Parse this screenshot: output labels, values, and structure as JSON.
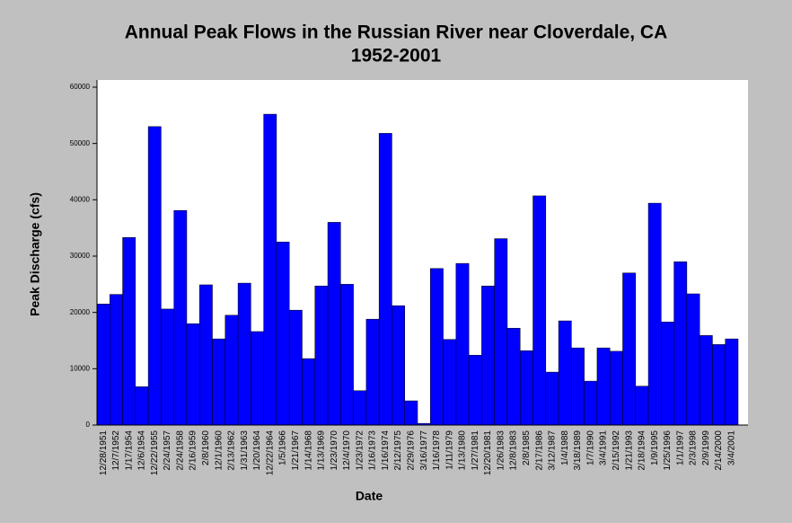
{
  "chart_data": {
    "type": "bar",
    "title": "Annual Peak Flows in the Russian River near Cloverdale, CA",
    "subtitle": "1952-2001",
    "x_label": "Date",
    "y_label": "Peak Discharge (cfs)",
    "categories": [
      "12/28/1951",
      "12/7/1952",
      "1/17/1954",
      "12/6/1954",
      "12/22/1955",
      "2/24/1957",
      "2/24/1958",
      "2/16/1959",
      "2/8/1960",
      "12/1/1960",
      "2/13/1962",
      "1/31/1963",
      "1/20/1964",
      "12/22/1964",
      "1/5/1966",
      "1/21/1967",
      "1/14/1968",
      "1/13/1969",
      "1/23/1970",
      "12/4/1970",
      "1/23/1972",
      "1/16/1973",
      "1/16/1974",
      "2/12/1975",
      "2/29/1976",
      "3/16/1977",
      "1/16/1978",
      "1/11/1979",
      "1/13/1980",
      "1/27/1981",
      "12/20/1981",
      "1/26/1983",
      "12/8/1983",
      "2/8/1985",
      "2/17/1986",
      "3/12/1987",
      "1/4/1988",
      "3/18/1989",
      "1/7/1990",
      "3/4/1991",
      "2/15/1992",
      "1/21/1993",
      "2/18/1994",
      "1/9/1995",
      "1/25/1996",
      "1/1/1997",
      "2/3/1998",
      "2/9/1999",
      "2/14/2000",
      "3/4/2001"
    ],
    "values": [
      21500,
      23200,
      33300,
      6800,
      53000,
      20600,
      38100,
      18000,
      24900,
      15300,
      19500,
      25200,
      16600,
      55200,
      32500,
      20400,
      11800,
      24700,
      36000,
      25000,
      6100,
      18800,
      51800,
      21200,
      4300,
      300,
      27800,
      15200,
      28700,
      12400,
      24700,
      33100,
      17200,
      13200,
      40700,
      9400,
      18500,
      13700,
      7800,
      13700,
      13100,
      27000,
      6900,
      39400,
      18300,
      29000,
      23300,
      15900,
      14300,
      15300
    ],
    "color": "#0000ff",
    "ylim": [
      0,
      60000
    ],
    "yticks": [
      0,
      10000,
      20000,
      30000,
      40000,
      50000,
      60000
    ]
  }
}
